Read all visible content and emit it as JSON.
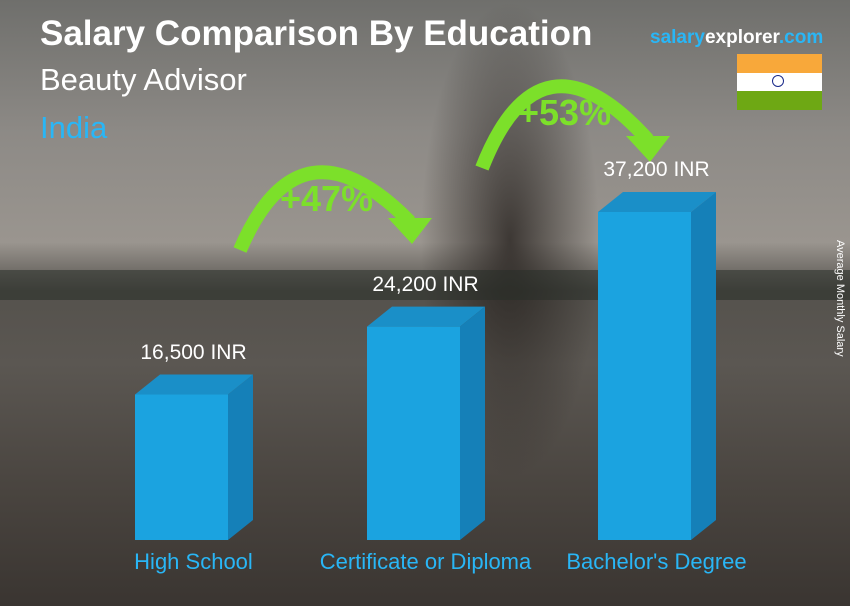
{
  "header": {
    "title": "Salary Comparison By Education",
    "subtitle": "Beauty Advisor",
    "country": "India"
  },
  "logo": {
    "part1": "salary",
    "part2": "explorer",
    "part3": ".com"
  },
  "flag": {
    "country": "India",
    "colors": [
      "#f8a83a",
      "#ffffff",
      "#6ea814"
    ]
  },
  "chart_data": {
    "type": "bar",
    "title": "Salary Comparison By Education",
    "ylabel": "Average Monthly Salary",
    "categories": [
      "High School",
      "Certificate or Diploma",
      "Bachelor's Degree"
    ],
    "values": [
      16500,
      24200,
      37200
    ],
    "value_labels": [
      "16,500 INR",
      "24,200 INR",
      "37,200 INR"
    ],
    "unit": "INR",
    "bar_color": "#1ba3e0",
    "annotations": [
      {
        "from": "High School",
        "to": "Certificate or Diploma",
        "label": "+47%"
      },
      {
        "from": "Certificate or Diploma",
        "to": "Bachelor's Degree",
        "label": "+53%"
      }
    ],
    "arrow_color": "#7ce02a"
  }
}
